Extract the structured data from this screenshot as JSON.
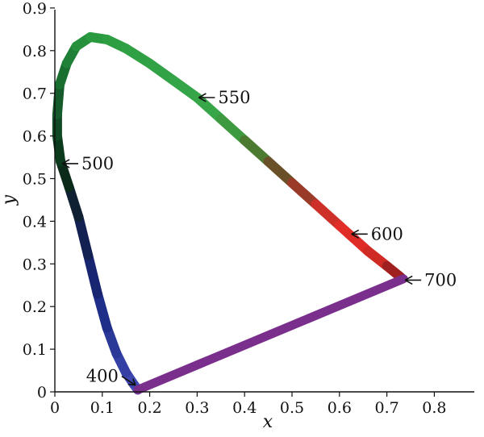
{
  "chart_data": {
    "type": "line",
    "title": "",
    "xlabel": "x",
    "ylabel": "y",
    "xlim": [
      0,
      0.9
    ],
    "ylim": [
      0,
      0.9
    ],
    "xticks": [
      "0",
      "0.1",
      "0.2",
      "0.3",
      "0.4",
      "0.5",
      "0.6",
      "0.7",
      "0.8"
    ],
    "yticks": [
      "0",
      "0.1",
      "0.2",
      "0.3",
      "0.4",
      "0.5",
      "0.6",
      "0.7",
      "0.8",
      "0.9"
    ],
    "grid": false,
    "series": [
      {
        "points": [
          {
            "x": 0.175,
            "y": 0.005,
            "color": "#4a50b8"
          },
          {
            "x": 0.165,
            "y": 0.02,
            "color": "#3e48b0"
          },
          {
            "x": 0.15,
            "y": 0.045,
            "color": "#3540a5"
          },
          {
            "x": 0.13,
            "y": 0.09,
            "color": "#2a3898"
          },
          {
            "x": 0.11,
            "y": 0.15,
            "color": "#1f2e88"
          },
          {
            "x": 0.09,
            "y": 0.23,
            "color": "#182570"
          },
          {
            "x": 0.07,
            "y": 0.32,
            "color": "#122052"
          },
          {
            "x": 0.05,
            "y": 0.41,
            "color": "#0e2032"
          },
          {
            "x": 0.03,
            "y": 0.48,
            "color": "#0b2a18"
          },
          {
            "x": 0.012,
            "y": 0.54,
            "color": "#0c3a1c"
          },
          {
            "x": 0.005,
            "y": 0.6,
            "color": "#0f4a24"
          },
          {
            "x": 0.005,
            "y": 0.65,
            "color": "#145a2a"
          },
          {
            "x": 0.01,
            "y": 0.72,
            "color": "#1a6e30"
          },
          {
            "x": 0.025,
            "y": 0.77,
            "color": "#208038"
          },
          {
            "x": 0.045,
            "y": 0.81,
            "color": "#26903c"
          },
          {
            "x": 0.075,
            "y": 0.832,
            "color": "#2a9a40"
          },
          {
            "x": 0.11,
            "y": 0.826,
            "color": "#2e9e42"
          },
          {
            "x": 0.15,
            "y": 0.805,
            "color": "#30a044"
          },
          {
            "x": 0.2,
            "y": 0.77,
            "color": "#32a246"
          },
          {
            "x": 0.25,
            "y": 0.73,
            "color": "#34a448"
          },
          {
            "x": 0.3,
            "y": 0.69,
            "color": "#36a648"
          },
          {
            "x": 0.35,
            "y": 0.64,
            "color": "#3e9a40"
          },
          {
            "x": 0.4,
            "y": 0.59,
            "color": "#4c7a30"
          },
          {
            "x": 0.45,
            "y": 0.54,
            "color": "#6a5028"
          },
          {
            "x": 0.5,
            "y": 0.49,
            "color": "#9a3a28"
          },
          {
            "x": 0.55,
            "y": 0.44,
            "color": "#cc3028"
          },
          {
            "x": 0.6,
            "y": 0.39,
            "color": "#e22e28"
          },
          {
            "x": 0.62,
            "y": 0.37,
            "color": "#e02c26"
          },
          {
            "x": 0.66,
            "y": 0.33,
            "color": "#d02a24"
          },
          {
            "x": 0.7,
            "y": 0.295,
            "color": "#a02020"
          },
          {
            "x": 0.73,
            "y": 0.268,
            "color": "#5a1410"
          }
        ]
      },
      {
        "color": "#7a2f8c",
        "points": [
          {
            "x": 0.735,
            "y": 0.265
          },
          {
            "x": 0.175,
            "y": 0.005
          }
        ]
      }
    ],
    "annotations": [
      {
        "text": "550",
        "x": 0.3,
        "y": 0.69,
        "side": "right"
      },
      {
        "text": "500",
        "x": 0.012,
        "y": 0.535,
        "side": "right"
      },
      {
        "text": "600",
        "x": 0.622,
        "y": 0.37,
        "side": "right"
      },
      {
        "text": "700",
        "x": 0.735,
        "y": 0.262,
        "side": "right"
      },
      {
        "text": "400",
        "x": 0.175,
        "y": 0.01,
        "side": "left"
      }
    ]
  }
}
